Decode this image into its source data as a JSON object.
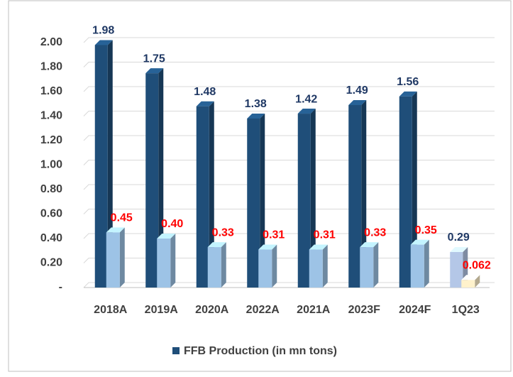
{
  "chart_data": {
    "type": "bar3d",
    "categories": [
      "2018A",
      "2019A",
      "2020A",
      "2022A",
      "2021A",
      "2023F",
      "2024F",
      "1Q23"
    ],
    "series": [
      {
        "name": "FFB Production (in mn tons)",
        "color": "#1f4e79",
        "colors": [
          "#1f4e79",
          "#1f4e79",
          "#1f4e79",
          "#1f4e79",
          "#1f4e79",
          "#1f4e79",
          "#1f4e79",
          "#b4c7e7"
        ],
        "label_color": "#1f3864",
        "values": [
          1.98,
          1.75,
          1.48,
          1.38,
          1.42,
          1.49,
          1.56,
          0.29
        ]
      },
      {
        "color": "#9dc3e6",
        "colors": [
          "#9dc3e6",
          "#9dc3e6",
          "#9dc3e6",
          "#9dc3e6",
          "#9dc3e6",
          "#9dc3e6",
          "#9dc3e6",
          "#fff2cc"
        ],
        "label_color": "#ff0000",
        "values": [
          0.45,
          0.4,
          0.33,
          0.31,
          0.31,
          0.33,
          0.35,
          0.062
        ],
        "value_labels": [
          "0.45",
          "0.40",
          "0.33",
          "0.31",
          "0.31",
          "0.33",
          "0.35",
          "0.062"
        ]
      }
    ],
    "ylim": [
      0,
      2
    ],
    "yticks": [
      {
        "value": 0,
        "label": "-"
      },
      {
        "value": 0.2,
        "label": "0.20"
      },
      {
        "value": 0.4,
        "label": "0.40"
      },
      {
        "value": 0.6,
        "label": "0.60"
      },
      {
        "value": 0.8,
        "label": "0.80"
      },
      {
        "value": 1.0,
        "label": "1.00"
      },
      {
        "value": 1.2,
        "label": "1.20"
      },
      {
        "value": 1.4,
        "label": "1.40"
      },
      {
        "value": 1.6,
        "label": "1.60"
      },
      {
        "value": 1.8,
        "label": "1.80"
      },
      {
        "value": 2.0,
        "label": "2.00"
      }
    ],
    "grid": true,
    "legend": "bottom"
  }
}
